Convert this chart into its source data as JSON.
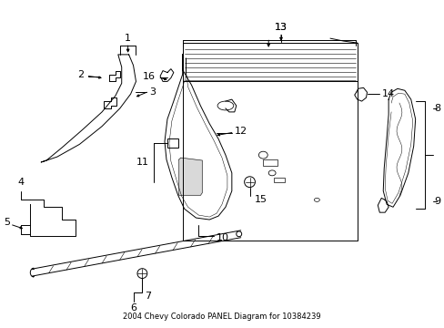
{
  "title": "2004 Chevy Colorado PANEL Diagram for 10384239",
  "background_color": "#ffffff",
  "line_color": "#000000",
  "figsize": [
    4.89,
    3.6
  ],
  "dpi": 100
}
